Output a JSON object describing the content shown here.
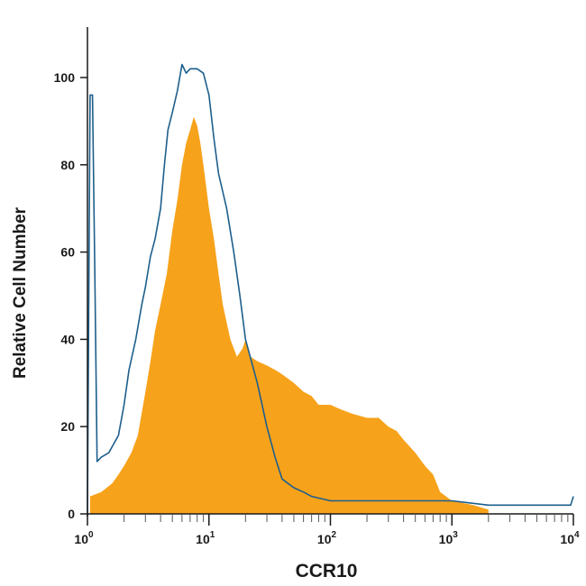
{
  "chart_data": {
    "type": "area",
    "title": "",
    "xlabel": "CCR10",
    "ylabel": "Relative Cell Number",
    "x_scale": "log",
    "xlim": [
      1,
      10000
    ],
    "ylim": [
      0,
      110
    ],
    "grid": false,
    "legend": "none",
    "x_ticks": [
      {
        "base": "10",
        "exp": "0",
        "value": 1
      },
      {
        "base": "10",
        "exp": "1",
        "value": 10
      },
      {
        "base": "10",
        "exp": "2",
        "value": 100
      },
      {
        "base": "10",
        "exp": "3",
        "value": 1000
      },
      {
        "base": "10",
        "exp": "4",
        "value": 10000
      }
    ],
    "y_ticks": [
      {
        "label": "0",
        "value": 0
      },
      {
        "label": "20",
        "value": 20
      },
      {
        "label": "40",
        "value": 40
      },
      {
        "label": "60",
        "value": 60
      },
      {
        "label": "80",
        "value": 80
      },
      {
        "label": "100",
        "value": 100
      }
    ],
    "series": [
      {
        "style": "filled",
        "color": "#f7a21b",
        "x": [
          1.05,
          1.3,
          1.6,
          1.8,
          2.0,
          2.3,
          2.6,
          3.0,
          3.3,
          3.6,
          4.0,
          4.5,
          5.0,
          5.5,
          6.0,
          6.5,
          7.0,
          7.5,
          8.0,
          8.5,
          9.0,
          10.0,
          11.0,
          12.0,
          13.0,
          15.0,
          17.0,
          19.0,
          20.0,
          22.0,
          25.0,
          30.0,
          35.0,
          40.0,
          50.0,
          60.0,
          70.0,
          80.0,
          100.0,
          120.0,
          150.0,
          200.0,
          250.0,
          300.0,
          350.0,
          400.0,
          500.0,
          600.0,
          700.0,
          800.0,
          1000.0,
          1500.0,
          2000.0
        ],
        "y": [
          4,
          5,
          7,
          9,
          11,
          14,
          18,
          28,
          35,
          42,
          48,
          55,
          65,
          72,
          80,
          85,
          88,
          91,
          89,
          85,
          80,
          70,
          63,
          55,
          48,
          40,
          36,
          38,
          40,
          36,
          35,
          34,
          33,
          32,
          30,
          28,
          27,
          25,
          25,
          24,
          23,
          22,
          22,
          20,
          19,
          17,
          14,
          11,
          9,
          5,
          3,
          2,
          1
        ]
      },
      {
        "style": "line",
        "color": "#1d5f8c",
        "x": [
          1.0,
          1.05,
          1.1,
          1.15,
          1.2,
          1.3,
          1.5,
          1.8,
          2.0,
          2.2,
          2.5,
          2.8,
          3.0,
          3.3,
          3.6,
          4.0,
          4.3,
          4.6,
          5.0,
          5.5,
          6.0,
          6.5,
          7.0,
          8.0,
          9.0,
          10.0,
          11.0,
          12.0,
          14.0,
          16.0,
          18.0,
          20.0,
          25.0,
          30.0,
          35.0,
          40.0,
          50.0,
          60.0,
          70.0,
          100.0,
          200.0,
          500.0,
          1000.0,
          2000.0,
          5000.0,
          9500.0,
          10000.0
        ],
        "y": [
          0,
          96,
          96,
          55,
          12,
          13,
          14,
          18,
          25,
          33,
          40,
          48,
          52,
          59,
          63,
          70,
          80,
          88,
          92,
          97,
          103,
          101,
          102,
          102,
          101,
          96,
          86,
          78,
          70,
          60,
          50,
          40,
          30,
          20,
          13,
          8,
          6,
          5,
          4,
          3,
          3,
          3,
          3,
          2,
          2,
          2,
          4
        ]
      }
    ]
  }
}
